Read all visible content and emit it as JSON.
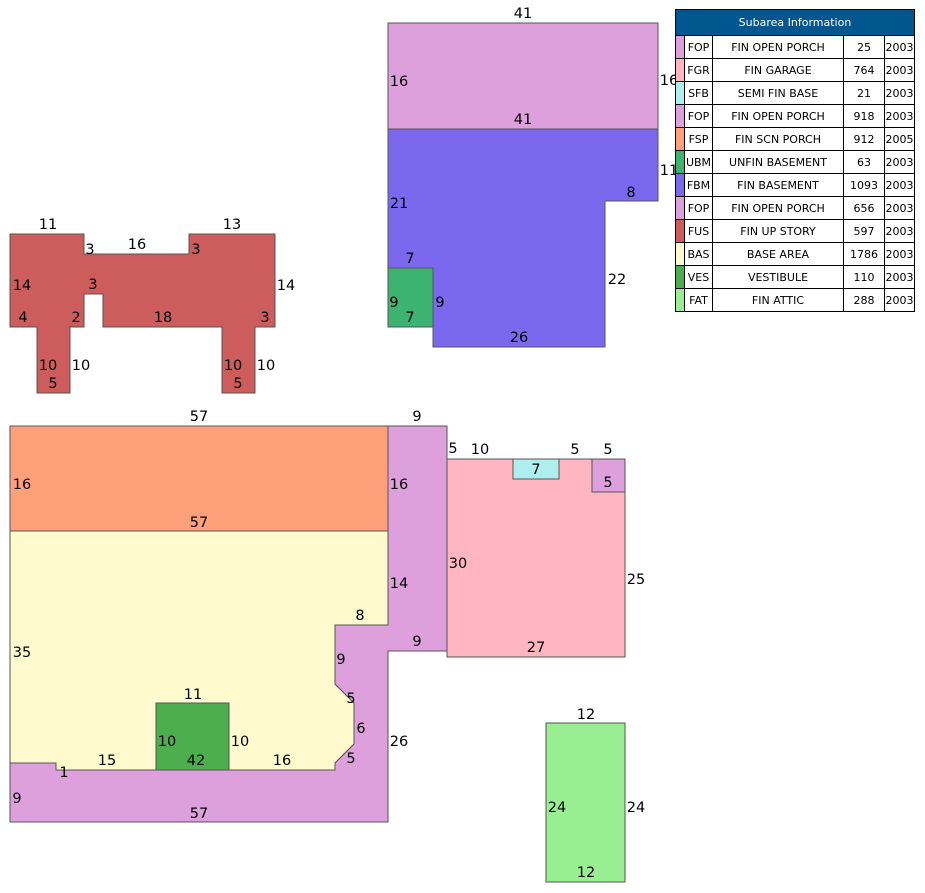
{
  "legend": {
    "title": "Subarea Information",
    "rows": [
      {
        "code": "FOP",
        "desc": "FIN OPEN PORCH",
        "area": "25",
        "year": "2003",
        "color": "#dda0dd"
      },
      {
        "code": "FGR",
        "desc": "FIN GARAGE",
        "area": "764",
        "year": "2003",
        "color": "#ffb6c1"
      },
      {
        "code": "SFB",
        "desc": "SEMI FIN BASE",
        "area": "21",
        "year": "2003",
        "color": "#afeeee"
      },
      {
        "code": "FOP",
        "desc": "FIN OPEN PORCH",
        "area": "918",
        "year": "2003",
        "color": "#dda0dd"
      },
      {
        "code": "FSP",
        "desc": "FIN SCN PORCH",
        "area": "912",
        "year": "2005",
        "color": "#ffa07a"
      },
      {
        "code": "UBM",
        "desc": "UNFIN BASEMENT",
        "area": "63",
        "year": "2003",
        "color": "#3cb371"
      },
      {
        "code": "FBM",
        "desc": "FIN BASEMENT",
        "area": "1093",
        "year": "2003",
        "color": "#7b68ee"
      },
      {
        "code": "FOP",
        "desc": "FIN OPEN PORCH",
        "area": "656",
        "year": "2003",
        "color": "#dda0dd"
      },
      {
        "code": "FUS",
        "desc": "FIN UP STORY",
        "area": "597",
        "year": "2003",
        "color": "#cd5c5c"
      },
      {
        "code": "BAS",
        "desc": "BASE AREA",
        "area": "1786",
        "year": "2003",
        "color": "#fffacd"
      },
      {
        "code": "VES",
        "desc": "VESTIBULE",
        "area": "110",
        "year": "2003",
        "color": "#4cae4c"
      },
      {
        "code": "FAT",
        "desc": "FIN ATTIC",
        "area": "288",
        "year": "2003",
        "color": "#98ee90"
      }
    ]
  },
  "areas": [
    {
      "code": "FSP",
      "color": "#ffa07a"
    },
    {
      "code": "BAS",
      "color": "#fffacd"
    },
    {
      "code": "FOP",
      "color": "#dda0dd"
    },
    {
      "code": "VES",
      "color": "#4cae4c"
    },
    {
      "code": "FGR",
      "color": "#ffb6c1"
    },
    {
      "code": "SFB",
      "color": "#afeeee"
    },
    {
      "code": "FAT",
      "color": "#98ee90"
    },
    {
      "code": "FUS",
      "color": "#cd5c5c"
    },
    {
      "code": "FBM",
      "color": "#7b68ee"
    },
    {
      "code": "UBM",
      "color": "#3cb371"
    }
  ],
  "dimensions": {
    "fus": [
      "11",
      "3",
      "16",
      "3",
      "13",
      "14",
      "3",
      "14",
      "4",
      "2",
      "18",
      "3",
      "10",
      "10",
      "5",
      "10",
      "10",
      "5"
    ],
    "top": [
      "41",
      "16",
      "16",
      "41",
      "11",
      "8",
      "21",
      "7",
      "9",
      "9",
      "7",
      "22",
      "26"
    ],
    "main": [
      "57",
      "9",
      "16",
      "5",
      "16",
      "57",
      "14",
      "8",
      "35",
      "9",
      "9",
      "5",
      "11",
      "10",
      "10",
      "6",
      "26",
      "15",
      "1",
      "42",
      "16",
      "5",
      "9",
      "57"
    ],
    "garage": [
      "10",
      "7",
      "5",
      "5",
      "5",
      "30",
      "25",
      "27"
    ],
    "attic": [
      "12",
      "24",
      "24",
      "12"
    ]
  }
}
